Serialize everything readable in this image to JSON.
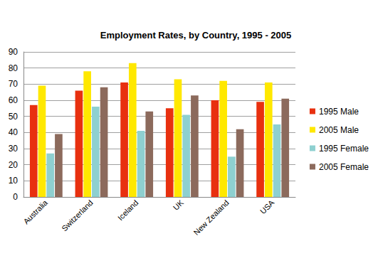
{
  "chart_data": {
    "type": "bar",
    "title": "Employment Rates, by Country, 1995 - 2005",
    "categories": [
      "Australia",
      "Switzerland",
      "Iceland",
      "UK",
      "New Zealand",
      "USA"
    ],
    "series": [
      {
        "name": "1995 Male",
        "color": "#e8300f",
        "values": [
          57,
          66,
          71,
          55,
          60,
          59
        ]
      },
      {
        "name": "2005 Male",
        "color": "#ffe800",
        "values": [
          69,
          78,
          83,
          73,
          72,
          71
        ]
      },
      {
        "name": "1995 Female",
        "color": "#8ed0d0",
        "values": [
          27,
          56,
          41,
          51,
          25,
          45
        ]
      },
      {
        "name": "2005 Female",
        "color": "#8c6a5c",
        "values": [
          39,
          68,
          53,
          63,
          42,
          61
        ]
      }
    ],
    "ylim": [
      0,
      90
    ],
    "yticks": [
      0,
      10,
      20,
      30,
      40,
      50,
      60,
      70,
      80,
      90
    ],
    "grid": true,
    "legend": "right"
  }
}
